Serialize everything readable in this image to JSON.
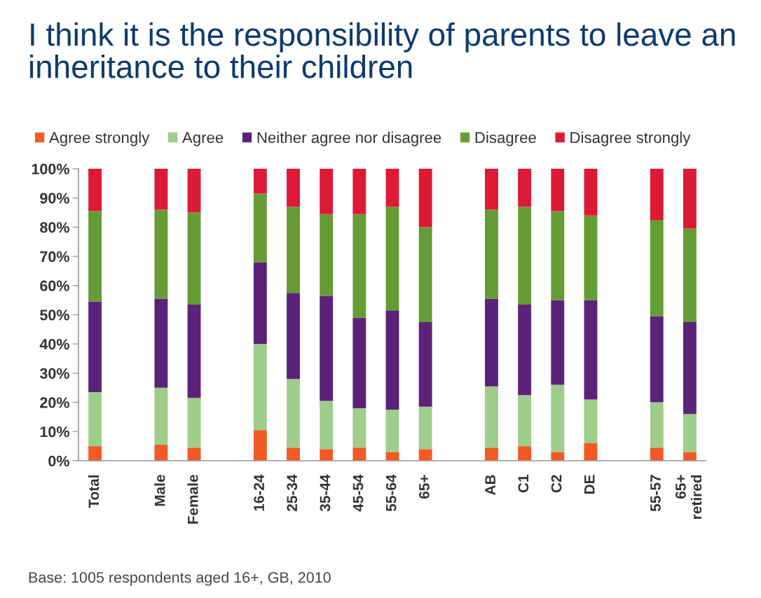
{
  "chart_data": {
    "type": "bar",
    "stacked": true,
    "title": "I think it is the responsibility of parents to leave an\ninheritance to their children",
    "categories": [
      "Total",
      null,
      "Male",
      "Female",
      null,
      "16-24",
      "25-34",
      "35-44",
      "45-54",
      "55-64",
      "65+",
      null,
      "AB",
      "C1",
      "C2",
      "DE",
      null,
      "55-57",
      "65+\nretired"
    ],
    "series": [
      {
        "name": "Agree strongly",
        "color": "#f15a22",
        "values": [
          5,
          null,
          5.5,
          4.5,
          null,
          10.5,
          4.5,
          4,
          4.5,
          3,
          4,
          null,
          4.5,
          5,
          3,
          6,
          null,
          4.5,
          3
        ]
      },
      {
        "name": "Agree",
        "color": "#9fcd8b",
        "values": [
          18.5,
          null,
          19.5,
          17,
          null,
          29.5,
          23.5,
          16.5,
          13.5,
          14.5,
          14.5,
          null,
          21,
          17.5,
          23,
          15,
          null,
          15.5,
          13
        ]
      },
      {
        "name": "Neither agree nor disagree",
        "color": "#5c2179",
        "values": [
          31,
          null,
          30.5,
          32,
          null,
          28,
          29.5,
          36,
          31,
          34,
          29,
          null,
          30,
          31,
          29,
          34,
          null,
          29.5,
          31.5
        ]
      },
      {
        "name": "Disagree",
        "color": "#659c35",
        "values": [
          31,
          null,
          30.5,
          31.5,
          null,
          23.5,
          29.5,
          28,
          35.5,
          35.5,
          32.5,
          null,
          30.5,
          33.5,
          30.5,
          29,
          null,
          33,
          32
        ]
      },
      {
        "name": "Disagree strongly",
        "color": "#dc1a35",
        "values": [
          14.5,
          null,
          14,
          15,
          null,
          8.5,
          13,
          15.5,
          15.5,
          13,
          20,
          null,
          14,
          13,
          14.5,
          16,
          null,
          17.5,
          20.5
        ]
      }
    ],
    "ylim": [
      0,
      100
    ],
    "yticks": [
      {
        "value": 0,
        "label": "0%"
      },
      {
        "value": 10,
        "label": "10%"
      },
      {
        "value": 20,
        "label": "20%"
      },
      {
        "value": 30,
        "label": "30%"
      },
      {
        "value": 40,
        "label": "40%"
      },
      {
        "value": 50,
        "label": "50%"
      },
      {
        "value": 60,
        "label": "60%"
      },
      {
        "value": 70,
        "label": "70%"
      },
      {
        "value": 80,
        "label": "80%"
      },
      {
        "value": 90,
        "label": "90%"
      },
      {
        "value": 100,
        "label": "100%"
      }
    ],
    "legend": "top",
    "annotations": [
      "Base: 1005 respondents aged 16+, GB, 2010"
    ]
  }
}
